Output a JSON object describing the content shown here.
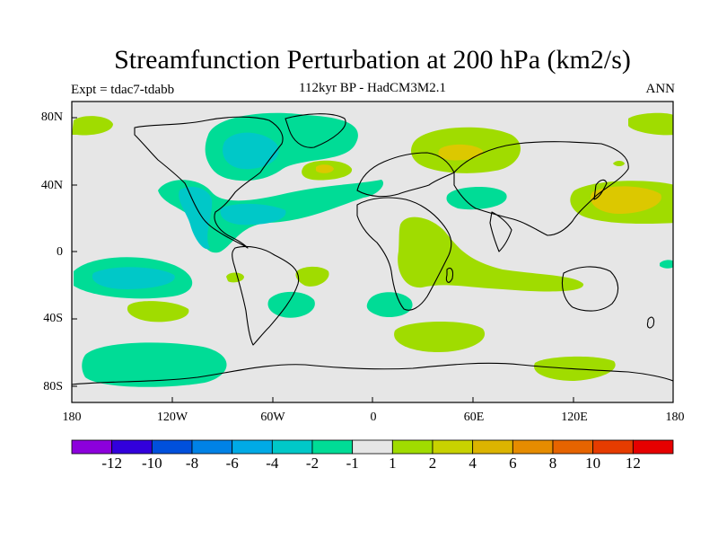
{
  "title": "Streamfunction Perturbation at 200 hPa (km2/s)",
  "subtitle": "112kyr BP - HadCM3M2.1",
  "left_label": "Expt = tdac7-tdabb",
  "right_label": "ANN",
  "lat_ticks": [
    "80N",
    "40N",
    "0",
    "40S",
    "80S"
  ],
  "lon_ticks": [
    "180",
    "120W",
    "60W",
    "0",
    "60E",
    "120E",
    "180"
  ],
  "colors": {
    "background_land_sea": "#e6e6e6",
    "neg_small": "#00dc96",
    "neg_mid": "#00c8c8",
    "neg_large": "#00aae6",
    "pos_small": "#a0dc00",
    "pos_mid": "#dcc800"
  },
  "colorbar": {
    "labels": [
      "-12",
      "-10",
      "-8",
      "-6",
      "-4",
      "-2",
      "-1",
      "1",
      "2",
      "4",
      "6",
      "8",
      "10",
      "12"
    ],
    "colors": [
      "#8c00dc",
      "#3200dc",
      "#0050dc",
      "#0082e6",
      "#00aae6",
      "#00c8c8",
      "#00dc96",
      "#e6e6e6",
      "#a0dc00",
      "#c8d200",
      "#dcb400",
      "#e68c00",
      "#e66400",
      "#e63c00",
      "#e60000"
    ]
  }
}
